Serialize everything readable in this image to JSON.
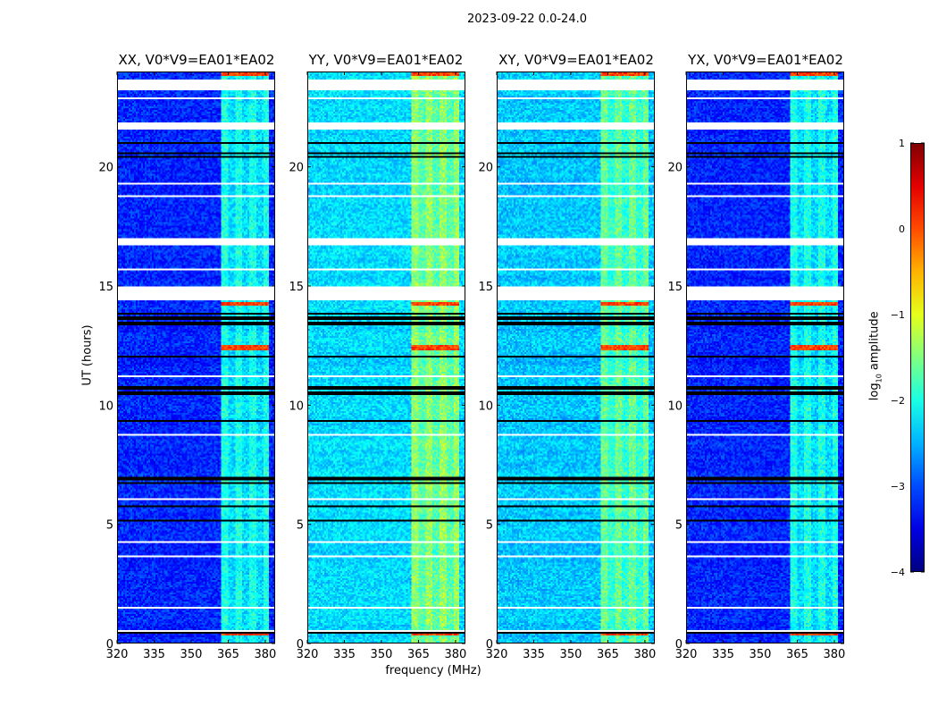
{
  "chart_data": {
    "type": "heatmap",
    "title": "2023-09-22 0.0-24.0",
    "xlabel": "frequency (MHz)",
    "ylabel": "UT (hours)",
    "xlim": [
      320,
      384
    ],
    "ylim": [
      0,
      24
    ],
    "xticks": [
      320,
      335,
      350,
      365,
      380
    ],
    "yticks": [
      0,
      5,
      10,
      15,
      20
    ],
    "colorbar": {
      "label_main": "log",
      "label_sub": "10",
      "label_rest": " amplitude",
      "range": [
        -4,
        1
      ],
      "ticks": [
        1,
        0,
        -1,
        -2,
        -3,
        -4
      ],
      "tick_labels": [
        "1",
        "0",
        "−1",
        "−2",
        "−3",
        "−4"
      ],
      "colormap": "jet"
    },
    "panels": [
      {
        "title": "XX, V0*V9=EA01*EA02",
        "base_level": -3.2,
        "rfi_level": -2.3
      },
      {
        "title": "YY, V0*V9=EA01*EA02",
        "base_level": -2.3,
        "rfi_level": -1.7
      },
      {
        "title": "XY, V0*V9=EA01*EA02",
        "base_level": -2.4,
        "rfi_level": -1.9
      },
      {
        "title": "YX, V0*V9=EA01*EA02",
        "base_level": -3.2,
        "rfi_level": -2.3
      }
    ],
    "rfi_band_mhz": [
      362,
      382
    ],
    "flagged_hours": [
      [
        23.25,
        23.7
      ],
      [
        21.6,
        21.9
      ],
      [
        16.7,
        17.05
      ],
      [
        14.4,
        15.0
      ],
      [
        18.75,
        18.8
      ],
      [
        19.3,
        19.35
      ],
      [
        8.7,
        8.8
      ],
      [
        4.2,
        4.3
      ],
      [
        2.9,
        2.95
      ],
      [
        1.4,
        1.5
      ],
      [
        0.45,
        0.5
      ],
      [
        22.9,
        22.95
      ],
      [
        15.7,
        15.75
      ],
      [
        11.2,
        11.25
      ],
      [
        6.0,
        6.05
      ],
      [
        3.6,
        3.65
      ]
    ],
    "dark_hours": [
      [
        20.4,
        20.6
      ],
      [
        13.3,
        13.9
      ],
      [
        10.4,
        10.9
      ],
      [
        12.0,
        12.1
      ],
      [
        6.7,
        7.0
      ],
      [
        5.1,
        5.2
      ],
      [
        5.6,
        5.75
      ],
      [
        21.0,
        21.1
      ],
      [
        0.35,
        0.42
      ],
      [
        1.15,
        1.2
      ],
      [
        2.6,
        2.65
      ],
      [
        18.2,
        18.25
      ],
      [
        9.3,
        9.35
      ]
    ],
    "hot_hours": [
      [
        12.3,
        12.5
      ],
      [
        14.2,
        14.35
      ],
      [
        0.3,
        0.35
      ],
      [
        10.5,
        10.6
      ],
      [
        24.0,
        23.85
      ]
    ]
  }
}
